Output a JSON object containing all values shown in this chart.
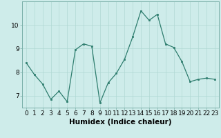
{
  "title": "",
  "xlabel": "Humidex (Indice chaleur)",
  "x_values": [
    0,
    1,
    2,
    3,
    4,
    5,
    6,
    7,
    8,
    9,
    10,
    11,
    12,
    13,
    14,
    15,
    16,
    17,
    18,
    19,
    20,
    21,
    22,
    23
  ],
  "y_values": [
    8.4,
    7.9,
    7.5,
    6.85,
    7.2,
    6.75,
    8.95,
    9.2,
    9.1,
    6.7,
    7.55,
    7.95,
    8.55,
    9.5,
    10.6,
    10.2,
    10.45,
    9.2,
    9.05,
    8.45,
    7.6,
    7.7,
    7.75,
    7.7
  ],
  "ylim": [
    6.5,
    11.0
  ],
  "xlim": [
    -0.5,
    23.5
  ],
  "yticks": [
    7,
    8,
    9,
    10
  ],
  "xticks": [
    0,
    1,
    2,
    3,
    4,
    5,
    6,
    7,
    8,
    9,
    10,
    11,
    12,
    13,
    14,
    15,
    16,
    17,
    18,
    19,
    20,
    21,
    22,
    23
  ],
  "line_color": "#2e7d6e",
  "marker_color": "#2e7d6e",
  "bg_color": "#ceecea",
  "grid_color": "#b0d8d4",
  "xlabel_fontsize": 7.5,
  "tick_fontsize": 6.5
}
